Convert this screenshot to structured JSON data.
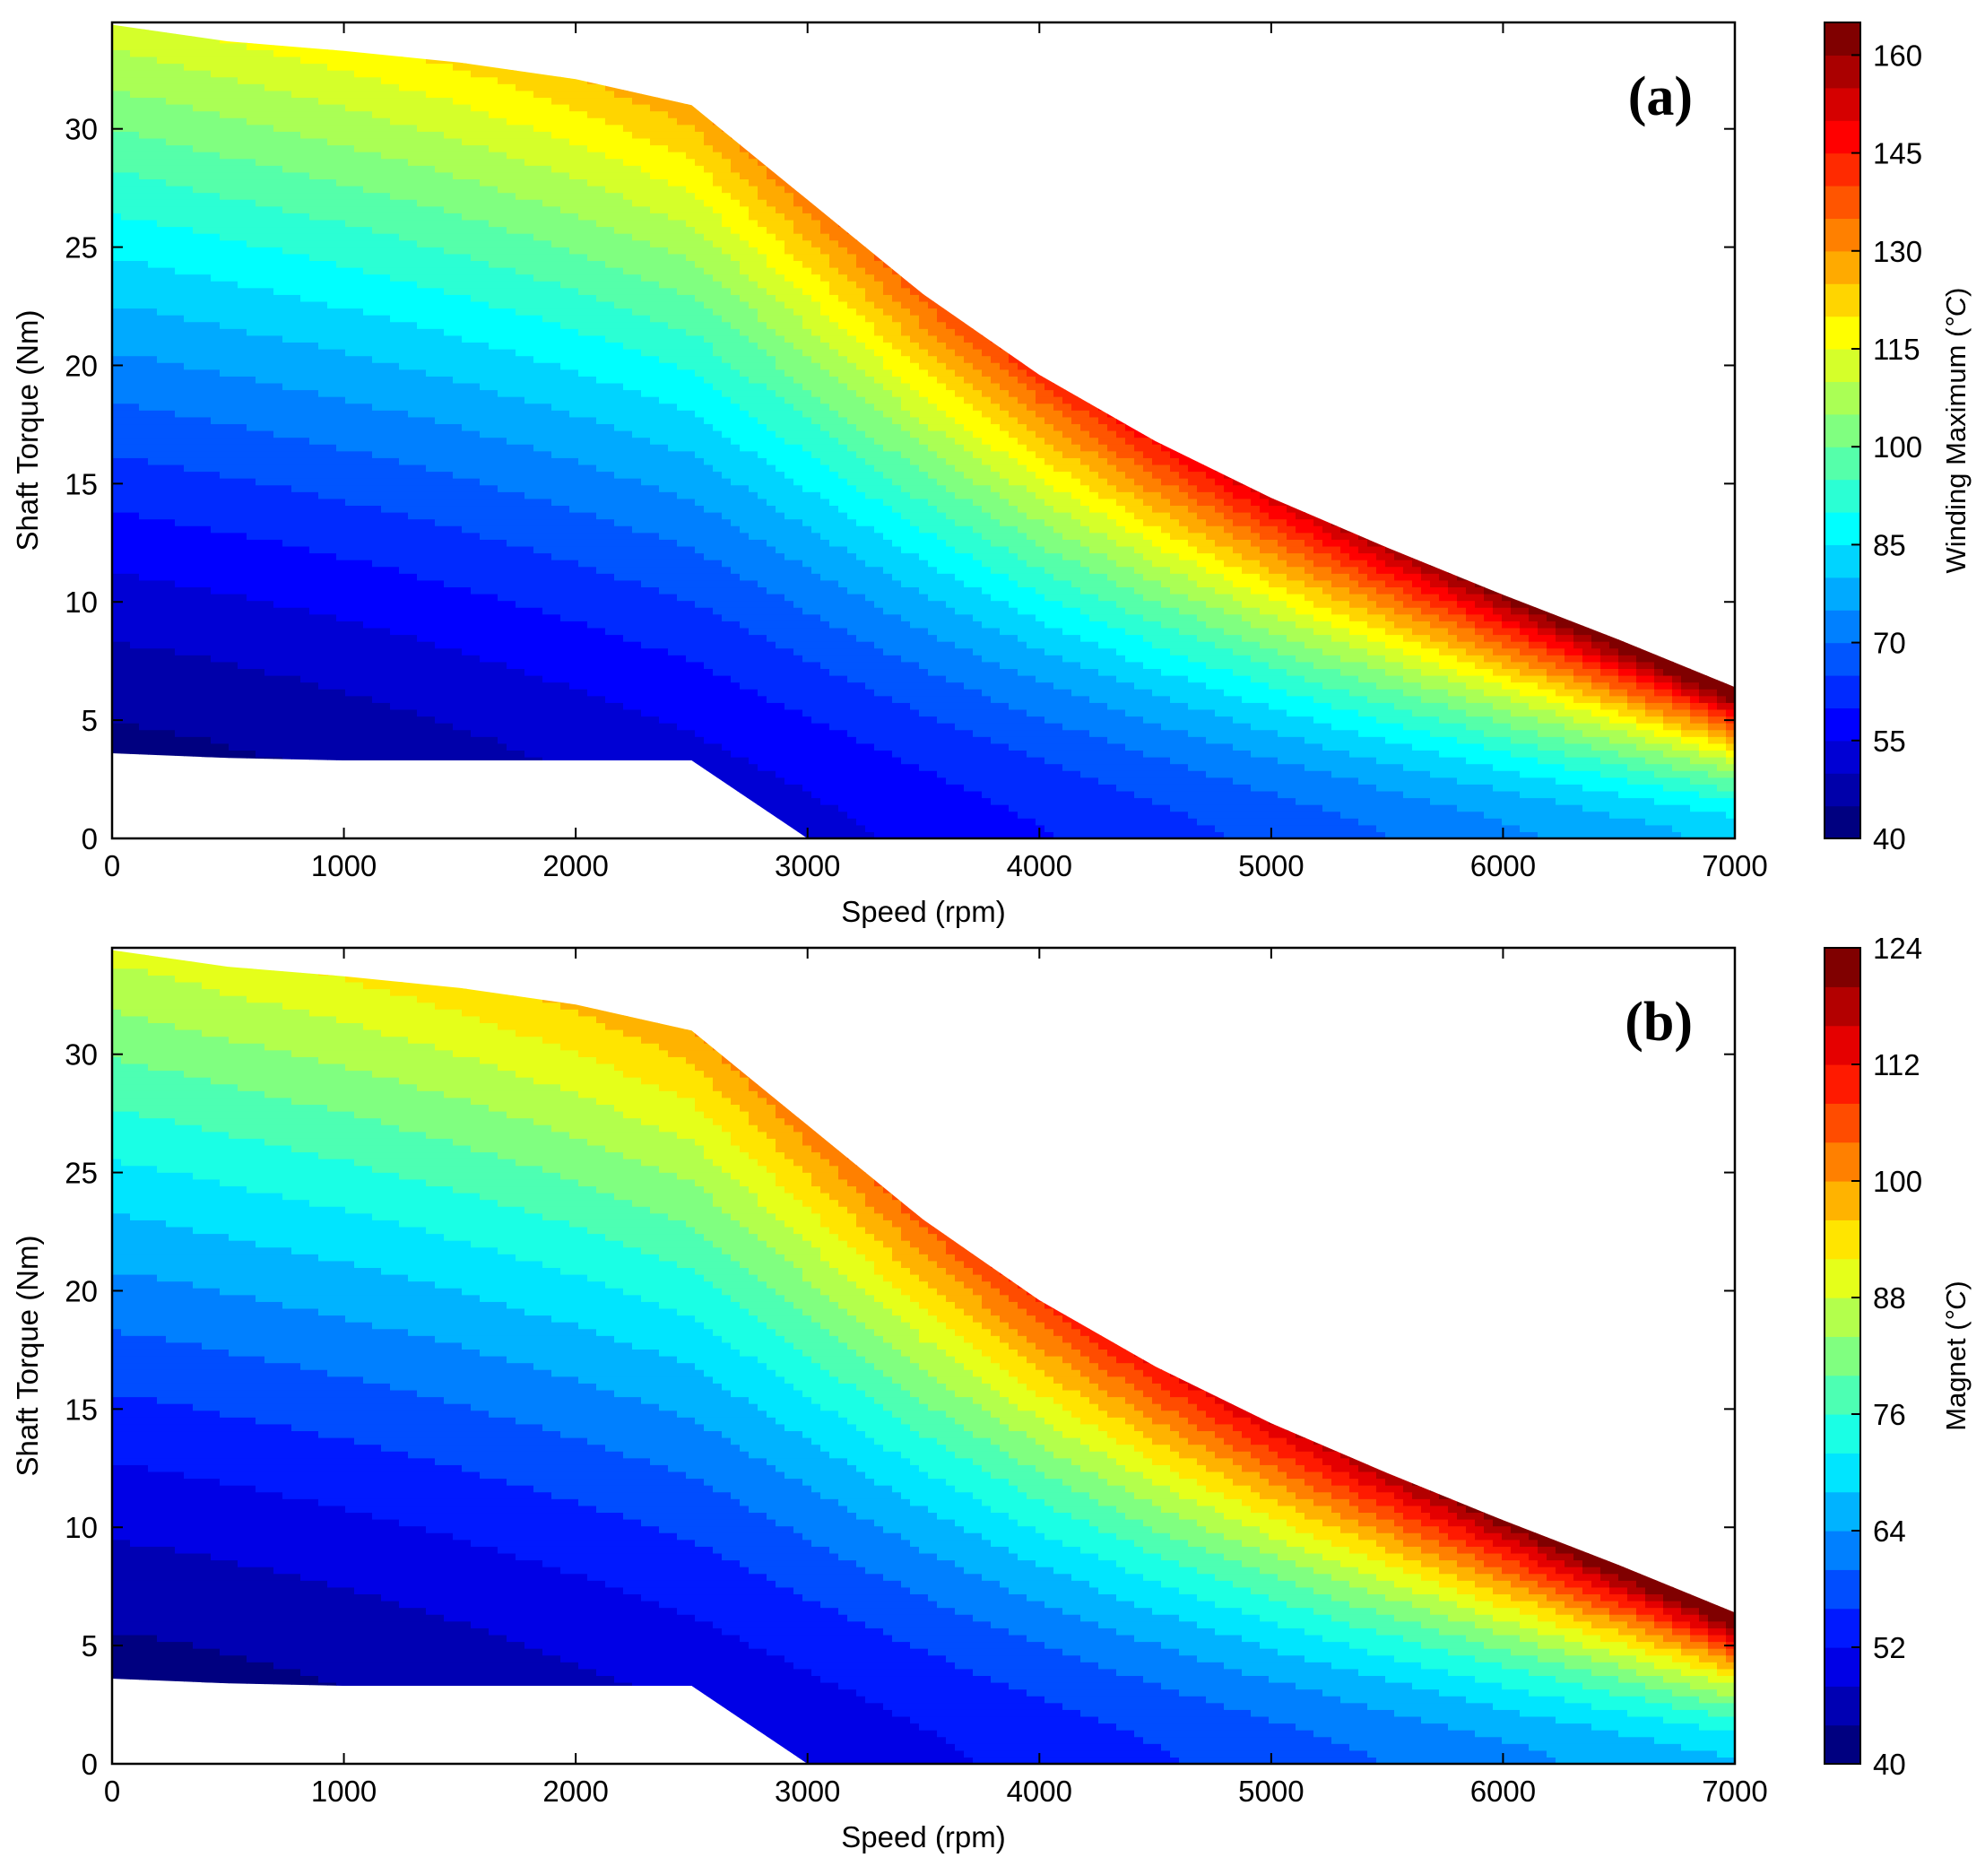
{
  "chart_data": [
    {
      "type": "heatmap",
      "subtype": "filled-contour",
      "panel_label": "(a)",
      "xlabel": "Speed (rpm)",
      "ylabel": "Shaft Torque (Nm)",
      "xlim": [
        0,
        7000
      ],
      "ylim": [
        0,
        34.5
      ],
      "x_ticks": [
        "0",
        "1000",
        "2000",
        "3000",
        "4000",
        "5000",
        "6000",
        "7000"
      ],
      "y_ticks": [
        "0",
        "5",
        "10",
        "15",
        "20",
        "25",
        "30"
      ],
      "colorbar": {
        "label": "Winding Maximum (°C)",
        "label_main": "Winding Maximum (",
        "label_unit": "°C",
        "label_close": ")",
        "range": [
          40,
          165
        ],
        "ticks": [
          "40",
          "55",
          "70",
          "85",
          "100",
          "115",
          "130",
          "145",
          "160"
        ],
        "levels": 25
      },
      "operating_envelope": {
        "upper_torque": [
          [
            0,
            34.4
          ],
          [
            500,
            33.7
          ],
          [
            1000,
            33.3
          ],
          [
            1500,
            32.8
          ],
          [
            2000,
            32.1
          ],
          [
            2500,
            31.0
          ],
          [
            3000,
            27.0
          ],
          [
            3500,
            23.0
          ],
          [
            4000,
            19.6
          ],
          [
            4500,
            16.8
          ],
          [
            5000,
            14.4
          ],
          [
            5500,
            12.3
          ],
          [
            6000,
            10.3
          ],
          [
            6500,
            8.4
          ],
          [
            7000,
            6.4
          ]
        ],
        "lower_torque": [
          [
            0,
            3.6
          ],
          [
            500,
            3.4
          ],
          [
            1000,
            3.3
          ],
          [
            1500,
            3.3
          ],
          [
            2000,
            3.3
          ],
          [
            2500,
            3.3
          ],
          [
            3000,
            0
          ]
        ]
      },
      "temperature_surface": {
        "speeds": [
          0,
          500,
          1000,
          1500,
          2000,
          2500,
          3000,
          3500,
          4000,
          4500,
          5000,
          5500,
          6000,
          6500,
          7000
        ],
        "min_temperature": 40,
        "max_temperature": 165
      }
    },
    {
      "type": "heatmap",
      "subtype": "filled-contour",
      "panel_label": "(b)",
      "xlabel": "Speed (rpm)",
      "ylabel": "Shaft Torque (Nm)",
      "xlim": [
        0,
        7000
      ],
      "ylim": [
        0,
        34.5
      ],
      "x_ticks": [
        "0",
        "1000",
        "2000",
        "3000",
        "4000",
        "5000",
        "6000",
        "7000"
      ],
      "y_ticks": [
        "0",
        "5",
        "10",
        "15",
        "20",
        "25",
        "30"
      ],
      "colorbar": {
        "label": "Magnet (°C)",
        "label_main": "Magnet (",
        "label_unit": "°C",
        "label_close": ")",
        "range": [
          40,
          124
        ],
        "ticks": [
          "40",
          "52",
          "64",
          "76",
          "88",
          "100",
          "112",
          "124"
        ],
        "levels": 21
      },
      "operating_envelope": {
        "upper_torque": [
          [
            0,
            34.4
          ],
          [
            500,
            33.7
          ],
          [
            1000,
            33.3
          ],
          [
            1500,
            32.8
          ],
          [
            2000,
            32.1
          ],
          [
            2500,
            31.0
          ],
          [
            3000,
            27.0
          ],
          [
            3500,
            23.0
          ],
          [
            4000,
            19.6
          ],
          [
            4500,
            16.8
          ],
          [
            5000,
            14.4
          ],
          [
            5500,
            12.3
          ],
          [
            6000,
            10.3
          ],
          [
            6500,
            8.4
          ],
          [
            7000,
            6.4
          ]
        ],
        "lower_torque": [
          [
            0,
            3.6
          ],
          [
            500,
            3.4
          ],
          [
            1000,
            3.3
          ],
          [
            1500,
            3.3
          ],
          [
            2000,
            3.3
          ],
          [
            2500,
            3.3
          ],
          [
            3000,
            0
          ]
        ]
      },
      "temperature_surface": {
        "speeds": [
          0,
          500,
          1000,
          1500,
          2000,
          2500,
          3000,
          3500,
          4000,
          4500,
          5000,
          5500,
          6000,
          6500,
          7000
        ],
        "min_temperature": 40,
        "max_temperature": 124
      }
    }
  ]
}
